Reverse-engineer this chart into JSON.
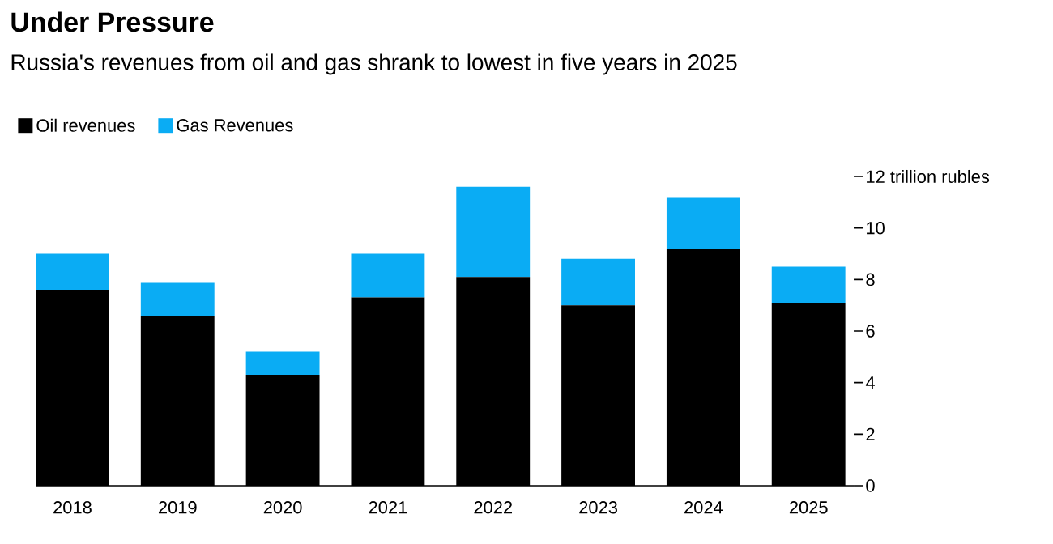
{
  "chart_data": {
    "type": "bar",
    "title": "Under Pressure",
    "subtitle": "Russia's revenues from oil and gas shrank to lowest in five years in 2025",
    "categories": [
      "2018",
      "2019",
      "2020",
      "2021",
      "2022",
      "2023",
      "2024",
      "2025"
    ],
    "series": [
      {
        "name": "Oil revenues",
        "color": "#000000",
        "values": [
          7.6,
          6.6,
          4.3,
          7.3,
          8.1,
          7.0,
          9.2,
          7.1
        ]
      },
      {
        "name": "Gas Revenues",
        "color": "#0aacf4",
        "values": [
          1.4,
          1.3,
          0.9,
          1.7,
          3.5,
          1.8,
          2.0,
          1.4
        ]
      }
    ],
    "stacked": true,
    "ylim": [
      0,
      12
    ],
    "yticks": [
      0,
      2,
      4,
      6,
      8,
      10,
      {
        "value": 12,
        "label": "12 trillion rubles"
      }
    ],
    "legend": "top left",
    "grid": false
  }
}
